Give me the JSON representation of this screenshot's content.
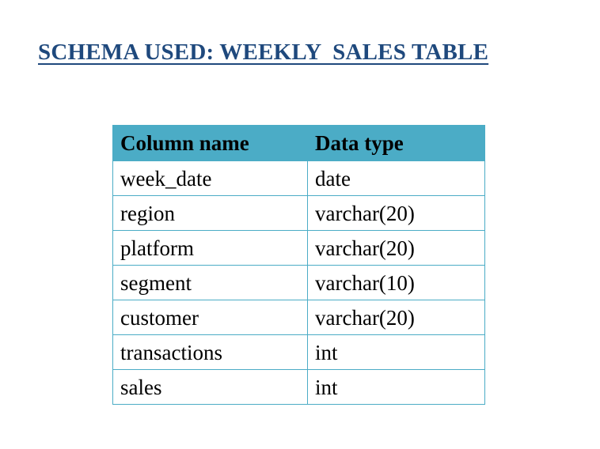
{
  "document": {
    "title": "SCHEMA USED: WEEKLY  SALES TABLE"
  },
  "table": {
    "headers": [
      "Column name",
      "Data type"
    ],
    "rows": [
      [
        "week_date",
        "date"
      ],
      [
        "region",
        "varchar(20)"
      ],
      [
        "platform",
        "varchar(20)"
      ],
      [
        "segment",
        "varchar(10)"
      ],
      [
        "customer",
        "varchar(20)"
      ],
      [
        "transactions",
        "int"
      ],
      [
        "sales",
        "int"
      ]
    ]
  },
  "colors": {
    "title": "#1f497d",
    "header_fill": "#4bacc6",
    "border": "#4bacc6"
  }
}
